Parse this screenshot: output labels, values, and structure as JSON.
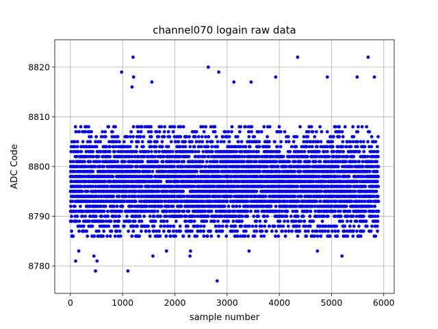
{
  "chart_data": {
    "type": "scatter",
    "title": "channel070 logain raw data",
    "xlabel": "sample number",
    "ylabel": "ADC Code",
    "xlim": [
      -300,
      6200
    ],
    "ylim": [
      8774.5,
      8825.5
    ],
    "xticks": [
      0,
      1000,
      2000,
      3000,
      4000,
      5000,
      6000
    ],
    "yticks": [
      8780,
      8790,
      8800,
      8810,
      8820
    ],
    "grid": true,
    "marker_color": "#0000ff",
    "series": [
      {
        "n_points": 5900,
        "x_range": [
          0,
          5899
        ],
        "distribution": {
          "center": 8796.5,
          "std": 5.0,
          "core_min": 8786,
          "core_max": 8808
        },
        "outliers": [
          {
            "x": 100,
            "y": 8781
          },
          {
            "x": 160,
            "y": 8783
          },
          {
            "x": 450,
            "y": 8782
          },
          {
            "x": 480,
            "y": 8779
          },
          {
            "x": 510,
            "y": 8781
          },
          {
            "x": 1100,
            "y": 8779
          },
          {
            "x": 1200,
            "y": 8822
          },
          {
            "x": 980,
            "y": 8819
          },
          {
            "x": 1180,
            "y": 8816
          },
          {
            "x": 1210,
            "y": 8818
          },
          {
            "x": 1560,
            "y": 8817
          },
          {
            "x": 1580,
            "y": 8782
          },
          {
            "x": 1840,
            "y": 8783
          },
          {
            "x": 2290,
            "y": 8782
          },
          {
            "x": 2300,
            "y": 8783
          },
          {
            "x": 2640,
            "y": 8820
          },
          {
            "x": 2810,
            "y": 8777
          },
          {
            "x": 2840,
            "y": 8819
          },
          {
            "x": 3130,
            "y": 8817
          },
          {
            "x": 3420,
            "y": 8783
          },
          {
            "x": 3460,
            "y": 8817
          },
          {
            "x": 3930,
            "y": 8818
          },
          {
            "x": 4350,
            "y": 8822
          },
          {
            "x": 4730,
            "y": 8783
          },
          {
            "x": 4920,
            "y": 8818
          },
          {
            "x": 5200,
            "y": 8782
          },
          {
            "x": 5490,
            "y": 8818
          },
          {
            "x": 5700,
            "y": 8822
          },
          {
            "x": 5820,
            "y": 8818
          }
        ]
      }
    ]
  }
}
